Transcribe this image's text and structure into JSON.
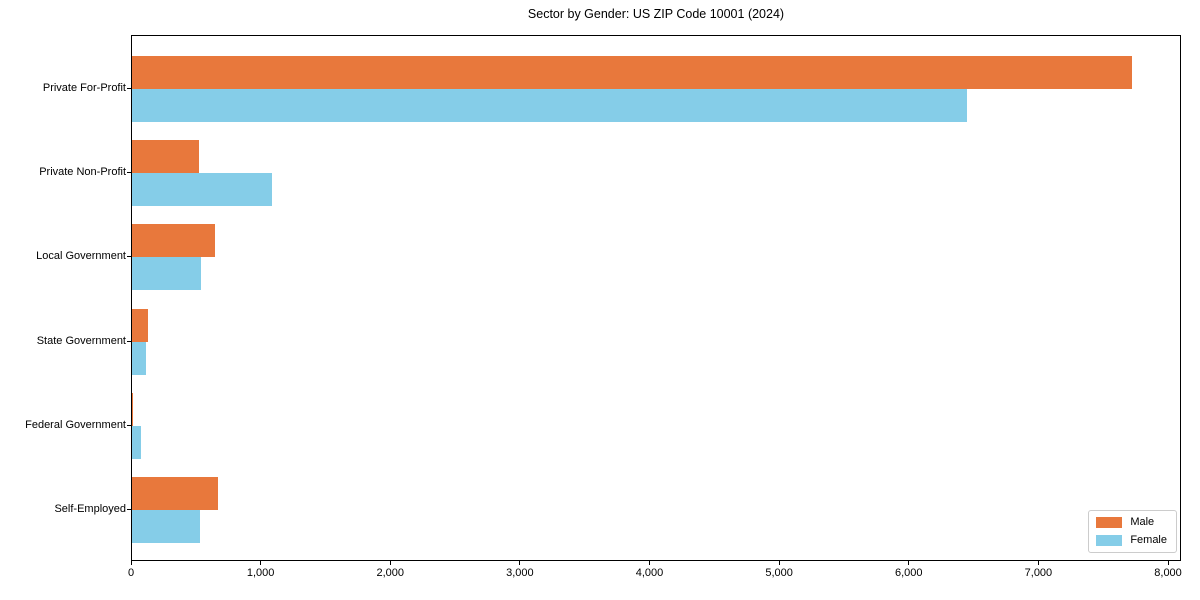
{
  "page": {
    "title": "Sector by Gender: US ZIP Code 10001 (2024)"
  },
  "chart_data": {
    "type": "bar",
    "orientation": "horizontal",
    "title": "Sector by Gender: US ZIP Code 10001 (2024)",
    "categories": [
      "Private For-Profit",
      "Private Non-Profit",
      "Local Government",
      "State Government",
      "Federal Government",
      "Self-Employed"
    ],
    "series": [
      {
        "name": "Male",
        "color": "#E8783C",
        "values": [
          7715,
          515,
          640,
          125,
          8,
          665
        ]
      },
      {
        "name": "Female",
        "color": "#85CDE8",
        "values": [
          6440,
          1080,
          530,
          110,
          70,
          525
        ]
      }
    ],
    "xlabel": "",
    "ylabel": "",
    "xlim": [
      0,
      8100
    ],
    "x_ticks": [
      0,
      1000,
      2000,
      3000,
      4000,
      5000,
      6000,
      7000,
      8000
    ],
    "x_tick_labels": [
      "0",
      "1,000",
      "2,000",
      "3,000",
      "4,000",
      "5,000",
      "6,000",
      "7,000",
      "8,000"
    ],
    "legend": {
      "position": "lower right",
      "entries": [
        "Male",
        "Female"
      ]
    },
    "grid": false
  }
}
